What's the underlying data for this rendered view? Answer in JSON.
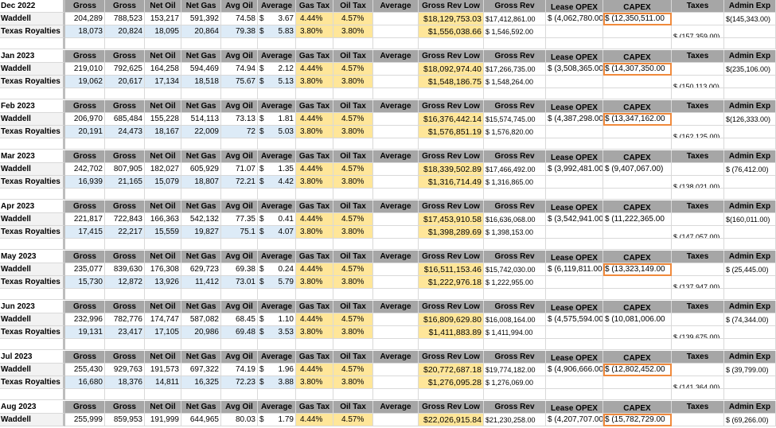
{
  "headers": {
    "gross1": "Gross",
    "gross2": "Gross",
    "net_oil": "Net Oil",
    "net_gas": "Net Gas",
    "avg_oil": "Avg Oil",
    "average": "Average",
    "gas_tax": "Gas Tax",
    "oil_tax": "Oil Tax",
    "average2": "Average",
    "gross_rev_low": "Gross Rev Low",
    "gross_rev": "Gross Rev",
    "lease_opex": "Lease OPEX",
    "capex": "CAPEX",
    "taxes": "Taxes",
    "admin_exp": "Admin Exp"
  },
  "colors": {
    "header_bg": "#a6a6a6",
    "tax_bg": "#ffe699",
    "blue_bg": "#ddebf7",
    "highlight": "#f08a3c"
  },
  "blocks": [
    {
      "month": "Dec 2022",
      "waddell": {
        "name": "Waddell",
        "gross1": "204,289",
        "gross2": "788,523",
        "net_oil": "153,217",
        "net_gas": "591,392",
        "avg_oil": "74.58",
        "avg_cur": "$",
        "avg_val": "3.67",
        "gas_tax": "4.44%",
        "oil_tax": "4.57%",
        "rev_low": "$18,129,753.03",
        "rev": "$17,412,861.00",
        "opex": "$ (4,062,780.00",
        "capex": "$ (12,350,511.00",
        "admin": "$(145,343.00)"
      },
      "texas": {
        "name": "Texas Royalties",
        "gross1": "18,073",
        "gross2": "20,824",
        "net_oil": "18,095",
        "net_gas": "20,864",
        "avg_oil": "79.38",
        "avg_cur": "$",
        "avg_val": "5.83",
        "gas_tax": "3.80%",
        "oil_tax": "3.80%",
        "rev_low": "$1,556,038.66",
        "rev": "$ 1,546,592.00",
        "taxes": "$ (157,359.00)"
      }
    },
    {
      "month": "Jan 2023",
      "waddell": {
        "name": "Waddell",
        "gross1": "219,010",
        "gross2": "792,625",
        "net_oil": "164,258",
        "net_gas": "594,469",
        "avg_oil": "74.94",
        "avg_cur": "$",
        "avg_val": "2.12",
        "gas_tax": "4.44%",
        "oil_tax": "4.57%",
        "rev_low": "$18,092,974.40",
        "rev": "$17,266,735.00",
        "opex": "$ (3,508,365.00",
        "capex": "$ (14,307,350.00",
        "admin": "$(235,106.00)"
      },
      "texas": {
        "name": "Texas Royalties",
        "gross1": "19,062",
        "gross2": "20,617",
        "net_oil": "17,134",
        "net_gas": "18,518",
        "avg_oil": "75.67",
        "avg_cur": "$",
        "avg_val": "5.13",
        "gas_tax": "3.80%",
        "oil_tax": "3.80%",
        "rev_low": "$1,548,186.75",
        "rev": "$ 1,548,264.00",
        "taxes": "$ (150,113.00)"
      }
    },
    {
      "month": "Feb 2023",
      "waddell": {
        "name": "Waddell",
        "gross1": "206,970",
        "gross2": "685,484",
        "net_oil": "155,228",
        "net_gas": "514,113",
        "avg_oil": "73.13",
        "avg_cur": "$",
        "avg_val": "1.81",
        "gas_tax": "4.44%",
        "oil_tax": "4.57%",
        "rev_low": "$16,376,442.14",
        "rev": "$15,574,745.00",
        "opex": "$ (4,387,298.00",
        "capex": "$ (13,347,162.00",
        "admin": "$(126,333.00)"
      },
      "texas": {
        "name": "Texas Royalties",
        "gross1": "20,191",
        "gross2": "24,473",
        "net_oil": "18,167",
        "net_gas": "22,009",
        "avg_oil": "72",
        "avg_cur": "$",
        "avg_val": "5.03",
        "gas_tax": "3.80%",
        "oil_tax": "3.80%",
        "rev_low": "$1,576,851.19",
        "rev": "$ 1,576,820.00",
        "taxes": "$ (162,125.00)"
      }
    },
    {
      "month": "Mar 2023",
      "waddell": {
        "name": "Waddell",
        "gross1": "242,702",
        "gross2": "807,905",
        "net_oil": "182,027",
        "net_gas": "605,929",
        "avg_oil": "71.07",
        "avg_cur": "$",
        "avg_val": "1.35",
        "gas_tax": "4.44%",
        "oil_tax": "4.57%",
        "rev_low": "$18,339,502.89",
        "rev": "$17,466,492.00",
        "opex": "$ (3,992,481.00",
        "capex": "$ (9,407,067.00)",
        "admin": "$ (76,412.00)"
      },
      "texas": {
        "name": "Texas Royalties",
        "gross1": "16,939",
        "gross2": "21,165",
        "net_oil": "15,079",
        "net_gas": "18,807",
        "avg_oil": "72.21",
        "avg_cur": "$",
        "avg_val": "4.42",
        "gas_tax": "3.80%",
        "oil_tax": "3.80%",
        "rev_low": "$1,316,714.49",
        "rev": "$ 1,316,865.00",
        "taxes": "$ (138,021.00)"
      }
    },
    {
      "month": "Apr 2023",
      "waddell": {
        "name": "Waddell",
        "gross1": "221,817",
        "gross2": "722,843",
        "net_oil": "166,363",
        "net_gas": "542,132",
        "avg_oil": "77.35",
        "avg_cur": "$",
        "avg_val": "0.41",
        "gas_tax": "4.44%",
        "oil_tax": "4.57%",
        "rev_low": "$17,453,910.58",
        "rev": "$16,636,068.00",
        "opex": "$ (3,542,941.00",
        "capex": "$ (11,222,365.00",
        "admin": "$(160,011.00)"
      },
      "texas": {
        "name": "Texas Royalties",
        "gross1": "17,415",
        "gross2": "22,217",
        "net_oil": "15,559",
        "net_gas": "19,827",
        "avg_oil": "75.1",
        "avg_cur": "$",
        "avg_val": "4.07",
        "gas_tax": "3.80%",
        "oil_tax": "3.80%",
        "rev_low": "$1,398,289.69",
        "rev": "$ 1,398,153.00",
        "taxes": "$ (147,057.00)"
      }
    },
    {
      "month": "May 2023",
      "waddell": {
        "name": "Waddell",
        "gross1": "235,077",
        "gross2": "839,630",
        "net_oil": "176,308",
        "net_gas": "629,723",
        "avg_oil": "69.38",
        "avg_cur": "$",
        "avg_val": "0.24",
        "gas_tax": "4.44%",
        "oil_tax": "4.57%",
        "rev_low": "$16,511,153.46",
        "rev": "$15,742,030.00",
        "opex": "$ (6,119,811.00",
        "capex": "$ (13,323,149.00",
        "admin": "$ (25,445.00)"
      },
      "texas": {
        "name": "Texas Royalties",
        "gross1": "15,730",
        "gross2": "12,872",
        "net_oil": "13,926",
        "net_gas": "11,412",
        "avg_oil": "73.01",
        "avg_cur": "$",
        "avg_val": "5.79",
        "gas_tax": "3.80%",
        "oil_tax": "3.80%",
        "rev_low": "$1,222,976.18",
        "rev": "$ 1,222,955.00",
        "taxes": "$ (137,947.00)"
      }
    },
    {
      "month": "Jun 2023",
      "waddell": {
        "name": "Waddell",
        "gross1": "232,996",
        "gross2": "782,776",
        "net_oil": "174,747",
        "net_gas": "587,082",
        "avg_oil": "68.45",
        "avg_cur": "$",
        "avg_val": "1.10",
        "gas_tax": "4.44%",
        "oil_tax": "4.57%",
        "rev_low": "$16,809,629.80",
        "rev": "$16,008,164.00",
        "opex": "$ (4,575,594.00",
        "capex": "$ (10,081,006.00",
        "admin": "$ (74,344.00)"
      },
      "texas": {
        "name": "Texas Royalties",
        "gross1": "19,131",
        "gross2": "23,417",
        "net_oil": "17,105",
        "net_gas": "20,986",
        "avg_oil": "69.48",
        "avg_cur": "$",
        "avg_val": "3.53",
        "gas_tax": "3.80%",
        "oil_tax": "3.80%",
        "rev_low": "$1,411,883.89",
        "rev": "$ 1,411,994.00",
        "taxes": "$ (139,675.00)"
      }
    },
    {
      "month": "Jul 2023",
      "waddell": {
        "name": "Waddell",
        "gross1": "255,430",
        "gross2": "929,763",
        "net_oil": "191,573",
        "net_gas": "697,322",
        "avg_oil": "74.19",
        "avg_cur": "$",
        "avg_val": "1.96",
        "gas_tax": "4.44%",
        "oil_tax": "4.57%",
        "rev_low": "$20,772,687.18",
        "rev": "$19,774,182.00",
        "opex": "$ (4,906,666.00",
        "capex": "$ (12,802,452.00",
        "admin": "$ (39,799.00)"
      },
      "texas": {
        "name": "Texas Royalties",
        "gross1": "16,680",
        "gross2": "18,376",
        "net_oil": "14,811",
        "net_gas": "16,325",
        "avg_oil": "72.23",
        "avg_cur": "$",
        "avg_val": "3.88",
        "gas_tax": "3.80%",
        "oil_tax": "3.80%",
        "rev_low": "$1,276,095.28",
        "rev": "$ 1,276,069.00",
        "taxes": "$ (141,364.00)"
      }
    },
    {
      "month": "Aug 2023",
      "waddell": {
        "name": "Waddell",
        "gross1": "255,999",
        "gross2": "859,953",
        "net_oil": "191,999",
        "net_gas": "644,965",
        "avg_oil": "80.03",
        "avg_cur": "$",
        "avg_val": "1.79",
        "gas_tax": "4.44%",
        "oil_tax": "4.57%",
        "rev_low": "$22,026,915.84",
        "rev": "$21,230,258.00",
        "opex": "$ (4,207,707.00",
        "capex": "$ (15,782,729.00",
        "admin": "$ (69,266.00)"
      }
    }
  ]
}
